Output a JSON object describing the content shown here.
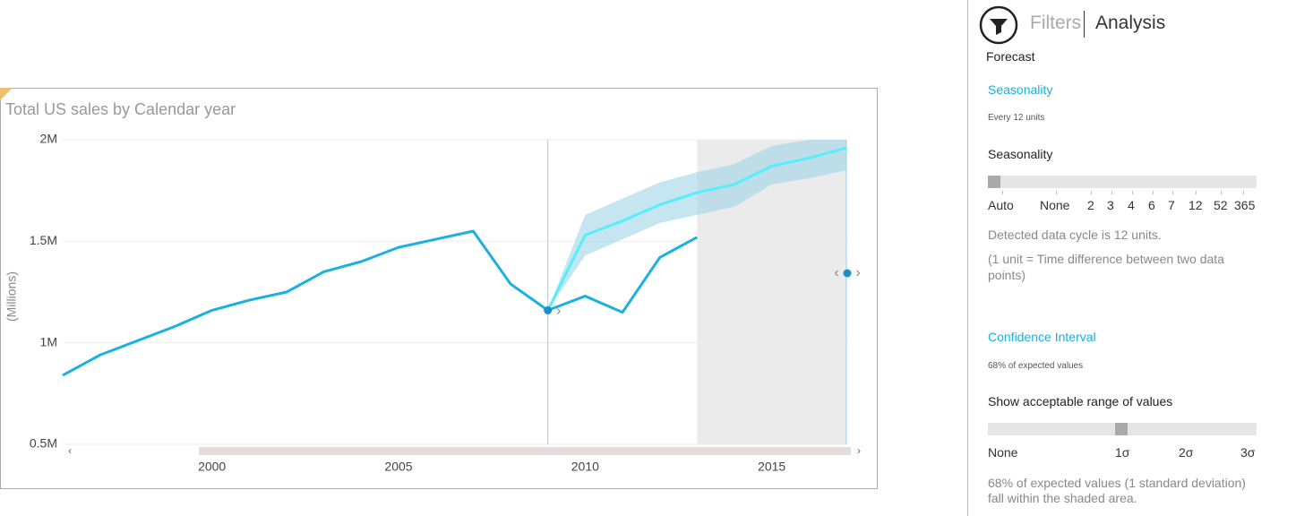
{
  "chart_data": {
    "type": "line",
    "title": "Total US sales by Calendar year",
    "y_label": "(Millions)",
    "xlim": [
      1996,
      2017
    ],
    "xticks": [
      2000,
      2005,
      2010,
      2015
    ],
    "ylim": [
      500000,
      2000000
    ],
    "yticks": [
      {
        "value": 500000,
        "label": "0.5M"
      },
      {
        "value": 1000000,
        "label": "1M"
      },
      {
        "value": 1500000,
        "label": "1.5M"
      },
      {
        "value": 2000000,
        "label": "2M"
      }
    ],
    "grid": true,
    "series": [
      {
        "color": "#1ab0e0",
        "x": [
          1996,
          1997,
          1998,
          1999,
          2000,
          2001,
          2002,
          2003,
          2004,
          2005,
          2006,
          2007,
          2008,
          2009,
          2010,
          2011,
          2012,
          2013
        ],
        "values": [
          840000,
          940000,
          1010000,
          1080000,
          1160000,
          1210000,
          1250000,
          1350000,
          1400000,
          1470000,
          1510000,
          1550000,
          1290000,
          1160000,
          1230000,
          1150000,
          1420000,
          1520000
        ]
      },
      {
        "color": "#55eefa",
        "band_color": "#9fd6e8",
        "x": [
          2009,
          2010,
          2011,
          2012,
          2013,
          2014,
          2015,
          2016,
          2017
        ],
        "values": [
          1160000,
          1530000,
          1600000,
          1680000,
          1740000,
          1780000,
          1870000,
          1910000,
          1960000
        ],
        "upper": [
          1160000,
          1630000,
          1710000,
          1790000,
          1840000,
          1880000,
          1970000,
          2000000,
          2000000
        ],
        "lower": [
          1160000,
          1430000,
          1510000,
          1590000,
          1630000,
          1670000,
          1780000,
          1810000,
          1850000
        ]
      }
    ]
  },
  "panel": {
    "tabs": [
      "Filters",
      "Analysis"
    ],
    "section": "Forecast",
    "seasonality": {
      "heading": "Seasonality",
      "summary": "Every 12 units",
      "label": "Seasonality",
      "options": [
        "Auto",
        "None",
        "2",
        "3",
        "4",
        "6",
        "7",
        "12",
        "52",
        "365"
      ],
      "note": "Detected data cycle is 12 units.",
      "explanation": "(1 unit = Time difference between two data points)"
    },
    "confidence": {
      "heading": "Confidence Interval",
      "summary": "68% of expected values",
      "label": "Show acceptable range of values",
      "options": [
        "None",
        "1σ",
        "2σ",
        "3σ"
      ],
      "note": "68% of expected values (1 standard deviation) fall within the shaded area."
    }
  }
}
